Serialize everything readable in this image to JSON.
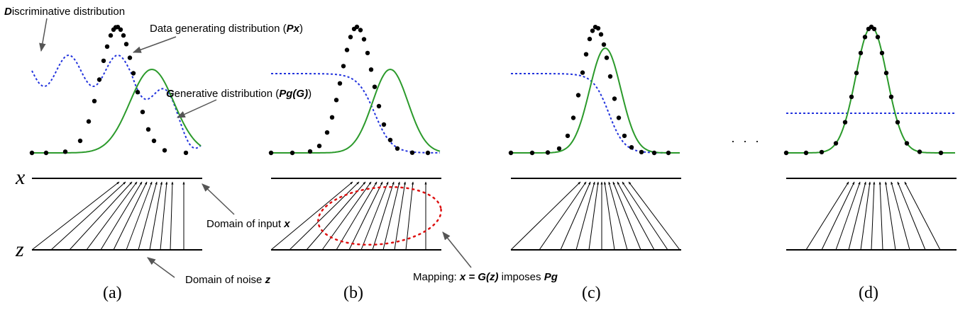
{
  "labels": {
    "disc_initial": "D",
    "disc_rest": "iscriminative distribution",
    "data_prefix": "Data generating distribution (",
    "data_bold": "Px",
    "data_suffix": ")",
    "gen_initial": "G",
    "gen_rest": "enerative distribution (",
    "gen_bold": "Pg(G)",
    "gen_suffix": ")",
    "domain_x_prefix": "Domain of input ",
    "domain_x_bold": "x",
    "domain_z_prefix": "Domain of noise ",
    "domain_z_bold": "z",
    "mapping_prefix": "Mapping: ",
    "mapping_bold": "x = G(z)",
    "mapping_mid": " imposes ",
    "mapping_bold2": "Pg"
  },
  "axis_labels": {
    "x": "x",
    "z": "z"
  },
  "ellipsis": "· · ·",
  "panels": [
    {
      "caption": "(a)"
    },
    {
      "caption": "(b)"
    },
    {
      "caption": "(c)"
    },
    {
      "caption": "(d)"
    }
  ],
  "colors": {
    "data_dots": "#000000",
    "generative": "#2b9a2b",
    "discriminative": "#2233dd",
    "mapping_ellipse": "#dd1111"
  }
}
